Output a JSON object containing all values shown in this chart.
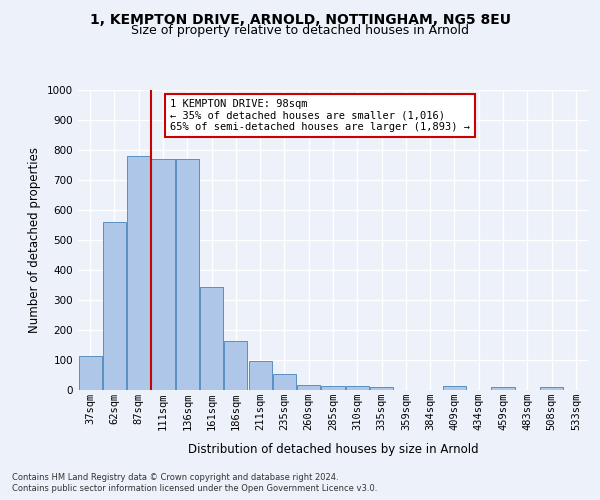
{
  "title1": "1, KEMPTON DRIVE, ARNOLD, NOTTINGHAM, NG5 8EU",
  "title2": "Size of property relative to detached houses in Arnold",
  "xlabel": "Distribution of detached houses by size in Arnold",
  "ylabel": "Number of detached properties",
  "bar_labels": [
    "37sqm",
    "62sqm",
    "87sqm",
    "111sqm",
    "136sqm",
    "161sqm",
    "186sqm",
    "211sqm",
    "235sqm",
    "260sqm",
    "285sqm",
    "310sqm",
    "335sqm",
    "359sqm",
    "384sqm",
    "409sqm",
    "434sqm",
    "459sqm",
    "483sqm",
    "508sqm",
    "533sqm"
  ],
  "bar_values": [
    112,
    560,
    780,
    770,
    770,
    345,
    165,
    98,
    55,
    18,
    14,
    14,
    10,
    0,
    0,
    12,
    0,
    9,
    0,
    9,
    0
  ],
  "bar_color": "#aec6e8",
  "bar_edge_color": "#5a8fc2",
  "vline_x": 2.5,
  "vline_color": "#cc0000",
  "annotation_text": "1 KEMPTON DRIVE: 98sqm\n← 35% of detached houses are smaller (1,016)\n65% of semi-detached houses are larger (1,893) →",
  "annotation_box_color": "#ffffff",
  "annotation_box_edge": "#cc0000",
  "ylim": [
    0,
    1000
  ],
  "yticks": [
    0,
    100,
    200,
    300,
    400,
    500,
    600,
    700,
    800,
    900,
    1000
  ],
  "footer1": "Contains HM Land Registry data © Crown copyright and database right 2024.",
  "footer2": "Contains public sector information licensed under the Open Government Licence v3.0.",
  "bg_color": "#edf2fa",
  "plot_bg_color": "#edf2fa",
  "grid_color": "#ffffff",
  "title_fontsize": 10,
  "subtitle_fontsize": 9,
  "axis_label_fontsize": 8.5,
  "tick_fontsize": 7.5,
  "footer_fontsize": 6
}
